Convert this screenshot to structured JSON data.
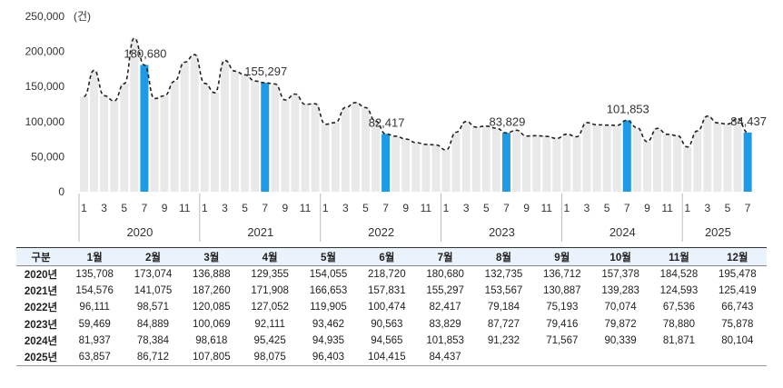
{
  "chart_data": {
    "type": "bar",
    "unit_label": "(건)",
    "ylim": [
      0,
      250000
    ],
    "yticks": [
      "0",
      "50,000",
      "100,000",
      "150,000",
      "200,000",
      "250,000"
    ],
    "ytick_values": [
      0,
      50000,
      100000,
      150000,
      200000,
      250000
    ],
    "x_tick_months": [
      "1",
      "3",
      "5",
      "7",
      "9",
      "11"
    ],
    "colors": {
      "bar": "#e9e9e9",
      "highlight": "#1e9be6",
      "line": "#222222",
      "year_divider": "#bbbbbb"
    },
    "highlight_month": 7,
    "series": [
      {
        "year": "2020",
        "values": [
          135708,
          173074,
          136888,
          129355,
          154055,
          218720,
          180680,
          132735,
          136712,
          157378,
          184528,
          195478
        ]
      },
      {
        "year": "2021",
        "values": [
          154576,
          141075,
          187260,
          171908,
          166653,
          157831,
          155297,
          153567,
          130887,
          139283,
          124593,
          125419
        ]
      },
      {
        "year": "2022",
        "values": [
          96111,
          98571,
          120085,
          127052,
          119905,
          100474,
          82417,
          79184,
          75193,
          70074,
          67536,
          66743
        ]
      },
      {
        "year": "2023",
        "values": [
          59469,
          84889,
          100069,
          92111,
          93462,
          90563,
          83829,
          87727,
          79416,
          79872,
          78880,
          75878
        ]
      },
      {
        "year": "2024",
        "values": [
          81937,
          78384,
          98618,
          95425,
          94935,
          94565,
          101853,
          91232,
          71567,
          90339,
          81871,
          80104
        ]
      },
      {
        "year": "2025",
        "values": [
          63857,
          86712,
          107805,
          98075,
          96403,
          104415,
          84437
        ]
      }
    ],
    "annotations": [
      "180,680",
      "155,297",
      "82,417",
      "83,829",
      "101,853",
      "84,437"
    ]
  },
  "table": {
    "corner": "구분",
    "headers": [
      "1월",
      "2월",
      "3월",
      "4월",
      "5월",
      "6월",
      "7월",
      "8월",
      "9월",
      "10월",
      "11월",
      "12월"
    ],
    "rows": [
      {
        "label": "2020년",
        "cells": [
          "135,708",
          "173,074",
          "136,888",
          "129,355",
          "154,055",
          "218,720",
          "180,680",
          "132,735",
          "136,712",
          "157,378",
          "184,528",
          "195,478"
        ]
      },
      {
        "label": "2021년",
        "cells": [
          "154,576",
          "141,075",
          "187,260",
          "171,908",
          "166,653",
          "157,831",
          "155,297",
          "153,567",
          "130,887",
          "139,283",
          "124,593",
          "125,419"
        ]
      },
      {
        "label": "2022년",
        "cells": [
          "96,111",
          "98,571",
          "120,085",
          "127,052",
          "119,905",
          "100,474",
          "82,417",
          "79,184",
          "75,193",
          "70,074",
          "67,536",
          "66,743"
        ]
      },
      {
        "label": "2023년",
        "cells": [
          "59,469",
          "84,889",
          "100,069",
          "92,111",
          "93,462",
          "90,563",
          "83,829",
          "87,727",
          "79,416",
          "79,872",
          "78,880",
          "75,878"
        ]
      },
      {
        "label": "2024년",
        "cells": [
          "81,937",
          "78,384",
          "98,618",
          "95,425",
          "94,935",
          "94,565",
          "101,853",
          "91,232",
          "71,567",
          "90,339",
          "81,871",
          "80,104"
        ]
      },
      {
        "label": "2025년",
        "cells": [
          "63,857",
          "86,712",
          "107,805",
          "98,075",
          "96,403",
          "104,415",
          "84,437",
          "",
          "",
          "",
          "",
          ""
        ]
      }
    ]
  }
}
